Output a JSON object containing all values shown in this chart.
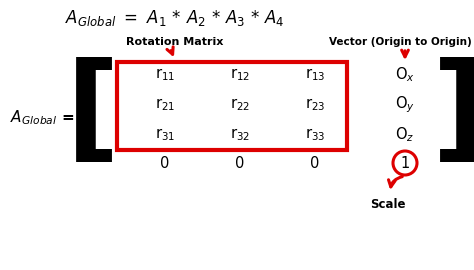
{
  "bg_color": "#ffffff",
  "red_color": "#dd0000",
  "black_color": "#000000",
  "label_rotation": "Rotation Matrix",
  "label_vector": "Vector (Origin to Origin)",
  "label_scale": "Scale",
  "matrix_rows": [
    [
      "r$_{11}$",
      "r$_{12}$",
      "r$_{13}$",
      "O$_x$"
    ],
    [
      "r$_{21}$",
      "r$_{22}$",
      "r$_{23}$",
      "O$_y$"
    ],
    [
      "r$_{31}$",
      "r$_{32}$",
      "r$_{33}$",
      "O$_z$"
    ],
    [
      "0",
      "0",
      "0",
      "1"
    ]
  ]
}
